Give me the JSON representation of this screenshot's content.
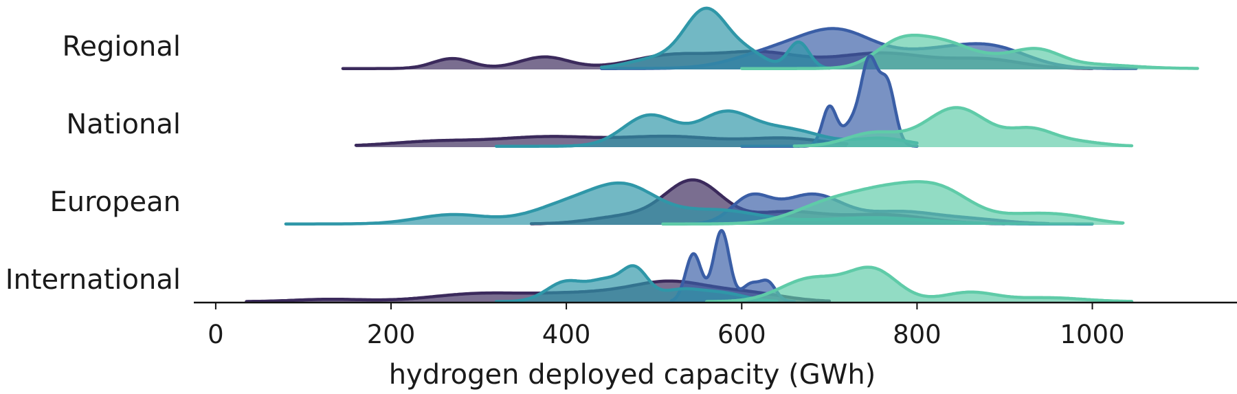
{
  "chart_data": {
    "type": "ridgeline",
    "title": "",
    "xlabel": "hydrogen deployed capacity (GWh)",
    "ylabel": "",
    "xlim": [
      -25,
      1165
    ],
    "xticks": [
      0,
      200,
      400,
      600,
      800,
      1000
    ],
    "xtick_labels": [
      "0",
      "200",
      "400",
      "600",
      "800",
      "1000"
    ],
    "grid": false,
    "legend": "none",
    "categories": [
      "Regional",
      "National",
      "European",
      "International"
    ],
    "series_colors": [
      "#3b2a5c",
      "#3a5ea6",
      "#2f97a8",
      "#5fcba8"
    ],
    "rows": [
      {
        "label": "Regional",
        "series": [
          {
            "range": [
              145,
              1000
            ],
            "peaks": [
              [
                270,
                0.13,
                22
              ],
              [
                375,
                0.15,
                28
              ],
              [
                520,
                0.17,
                45
              ],
              [
                620,
                0.2,
                45
              ],
              [
                760,
                0.2,
                55
              ],
              [
                880,
                0.11,
                40
              ]
            ]
          },
          {
            "range": [
              440,
              1050
            ],
            "peaks": [
              [
                640,
                0.22,
                45
              ],
              [
                710,
                0.42,
                40
              ],
              [
                820,
                0.22,
                55
              ],
              [
                890,
                0.2,
                40
              ]
            ]
          },
          {
            "range": [
              440,
              700
            ],
            "peaks": [
              [
                560,
                0.76,
                25
              ],
              [
                500,
                0.12,
                30
              ],
              [
                665,
                0.34,
                12
              ],
              [
                610,
                0.16,
                20
              ]
            ]
          },
          {
            "range": [
              600,
              1120
            ],
            "peaks": [
              [
                780,
                0.33,
                28
              ],
              [
                830,
                0.28,
                30
              ],
              [
                900,
                0.14,
                40
              ],
              [
                940,
                0.15,
                25
              ],
              [
                1000,
                0.05,
                45
              ]
            ]
          }
        ]
      },
      {
        "label": "National",
        "series": [
          {
            "range": [
              160,
              720
            ],
            "peaks": [
              [
                250,
                0.06,
                50
              ],
              [
                380,
                0.12,
                60
              ],
              [
                520,
                0.12,
                55
              ],
              [
                650,
                0.1,
                45
              ]
            ]
          },
          {
            "range": [
              600,
              800
            ],
            "peaks": [
              [
                700,
                0.5,
                8
              ],
              [
                746,
                1.0,
                9
              ],
              [
                766,
                0.8,
                9
              ],
              [
                728,
                0.32,
                12
              ]
            ]
          },
          {
            "range": [
              320,
              800
            ],
            "peaks": [
              [
                495,
                0.4,
                30
              ],
              [
                580,
                0.4,
                30
              ],
              [
                650,
                0.22,
                40
              ],
              [
                760,
                0.1,
                30
              ]
            ]
          },
          {
            "range": [
              660,
              1045
            ],
            "peaks": [
              [
                750,
                0.17,
                30
              ],
              [
                845,
                0.5,
                35
              ],
              [
                930,
                0.2,
                25
              ],
              [
                980,
                0.06,
                30
              ]
            ]
          }
        ]
      },
      {
        "label": "European",
        "series": [
          {
            "range": [
              360,
              900
            ],
            "peaks": [
              [
                545,
                0.55,
                32
              ],
              [
                470,
                0.1,
                40
              ],
              [
                650,
                0.15,
                40
              ],
              [
                760,
                0.12,
                50
              ]
            ]
          },
          {
            "range": [
              510,
              950
            ],
            "peaks": [
              [
                610,
                0.33,
                22
              ],
              [
                680,
                0.38,
                35
              ],
              [
                780,
                0.15,
                40
              ],
              [
                860,
                0.06,
                40
              ]
            ]
          },
          {
            "range": [
              80,
              1000
            ],
            "peaks": [
              [
                270,
                0.12,
                40
              ],
              [
                410,
                0.28,
                45
              ],
              [
                470,
                0.38,
                35
              ],
              [
                570,
                0.18,
                50
              ],
              [
                750,
                0.08,
                60
              ]
            ]
          },
          {
            "range": [
              510,
              1035
            ],
            "peaks": [
              [
                700,
                0.25,
                40
              ],
              [
                770,
                0.38,
                40
              ],
              [
                830,
                0.36,
                35
              ],
              [
                930,
                0.12,
                40
              ],
              [
                980,
                0.05,
                30
              ]
            ]
          }
        ]
      },
      {
        "label": "International",
        "series": [
          {
            "range": [
              35,
              700
            ],
            "peaks": [
              [
                130,
                0.03,
                40
              ],
              [
                300,
                0.1,
                55
              ],
              [
                420,
                0.1,
                55
              ],
              [
                520,
                0.24,
                45
              ],
              [
                610,
                0.1,
                40
              ]
            ]
          },
          {
            "range": [
              520,
              660
            ],
            "peaks": [
              [
                545,
                0.62,
                9
              ],
              [
                577,
                0.92,
                9
              ],
              [
                610,
                0.22,
                10
              ],
              [
                630,
                0.24,
                9
              ]
            ]
          },
          {
            "range": [
              320,
              640
            ],
            "peaks": [
              [
                400,
                0.26,
                22
              ],
              [
                445,
                0.24,
                18
              ],
              [
                478,
                0.4,
                15
              ],
              [
                530,
                0.15,
                25
              ],
              [
                580,
                0.1,
                25
              ]
            ]
          },
          {
            "range": [
              560,
              1045
            ],
            "peaks": [
              [
                680,
                0.3,
                35
              ],
              [
                750,
                0.4,
                28
              ],
              [
                860,
                0.12,
                30
              ],
              [
                950,
                0.05,
                40
              ]
            ]
          }
        ]
      }
    ]
  }
}
